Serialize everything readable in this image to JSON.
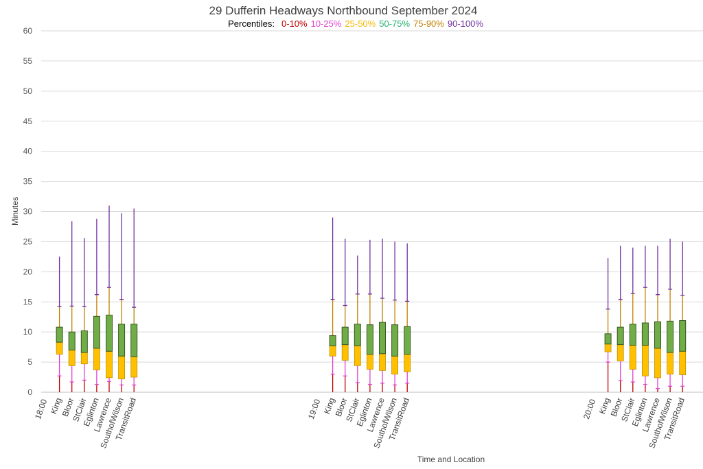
{
  "chart_data": {
    "type": "box",
    "title": "29 Dufferin Headways Northbound September 2024",
    "legend": {
      "label": "Percentiles:",
      "items": [
        {
          "name": "0-10%",
          "color": "#c00000"
        },
        {
          "name": "10-25%",
          "color": "#e040d0"
        },
        {
          "name": "25-50%",
          "color": "#f5b800"
        },
        {
          "name": "50-75%",
          "color": "#23b070"
        },
        {
          "name": "75-90%",
          "color": "#c08000"
        },
        {
          "name": "90-100%",
          "color": "#7030a0"
        }
      ]
    },
    "xlabel": "Time and Location",
    "ylabel": "Minutes",
    "ylim": [
      0,
      60
    ],
    "yticks": [
      0,
      5,
      10,
      15,
      20,
      25,
      30,
      35,
      40,
      45,
      50,
      55,
      60
    ],
    "grid": true,
    "groups": [
      {
        "time": "18:00",
        "locations": [
          {
            "name": "King",
            "min": 0,
            "p10": 2.7,
            "p25": 6.3,
            "p50": 8.3,
            "p75": 10.8,
            "p90": 14.2,
            "max": 22.5
          },
          {
            "name": "Bloor",
            "min": 0,
            "p10": 1.7,
            "p25": 4.4,
            "p50": 7.0,
            "p75": 10.0,
            "p90": 14.3,
            "max": 28.4
          },
          {
            "name": "StClair",
            "min": 0,
            "p10": 2.0,
            "p25": 4.7,
            "p50": 6.6,
            "p75": 10.2,
            "p90": 14.2,
            "max": 25.6
          },
          {
            "name": "Eglinton",
            "min": 0,
            "p10": 1.3,
            "p25": 3.7,
            "p50": 7.3,
            "p75": 12.6,
            "p90": 16.2,
            "max": 28.8
          },
          {
            "name": "Lawrence",
            "min": 0,
            "p10": 1.8,
            "p25": 2.4,
            "p50": 6.8,
            "p75": 12.8,
            "p90": 17.4,
            "max": 31.0
          },
          {
            "name": "SouthofWilson",
            "min": 0,
            "p10": 1.2,
            "p25": 2.2,
            "p50": 6.0,
            "p75": 11.3,
            "p90": 15.4,
            "max": 29.7
          },
          {
            "name": "TransitRoad",
            "min": 0,
            "p10": 1.2,
            "p25": 2.5,
            "p50": 5.9,
            "p75": 11.3,
            "p90": 14.1,
            "max": 30.5
          }
        ]
      },
      {
        "time": "19:00",
        "locations": [
          {
            "name": "King",
            "min": 0,
            "p10": 3.0,
            "p25": 6.0,
            "p50": 7.7,
            "p75": 9.4,
            "p90": 15.4,
            "max": 29.0
          },
          {
            "name": "Bloor",
            "min": 0,
            "p10": 2.7,
            "p25": 5.3,
            "p50": 7.9,
            "p75": 10.8,
            "p90": 14.4,
            "max": 25.5
          },
          {
            "name": "StClair",
            "min": 0,
            "p10": 1.6,
            "p25": 4.4,
            "p50": 7.7,
            "p75": 11.3,
            "p90": 16.3,
            "max": 22.7
          },
          {
            "name": "Eglinton",
            "min": 0,
            "p10": 1.3,
            "p25": 3.8,
            "p50": 6.3,
            "p75": 11.2,
            "p90": 16.3,
            "max": 25.3
          },
          {
            "name": "Lawrence",
            "min": 0,
            "p10": 1.5,
            "p25": 3.6,
            "p50": 6.4,
            "p75": 11.6,
            "p90": 15.6,
            "max": 25.5
          },
          {
            "name": "SouthofWilson",
            "min": 0,
            "p10": 1.2,
            "p25": 3.0,
            "p50": 6.0,
            "p75": 11.2,
            "p90": 15.3,
            "max": 25.0
          },
          {
            "name": "TransitRoad",
            "min": 0,
            "p10": 1.5,
            "p25": 3.4,
            "p50": 6.3,
            "p75": 10.9,
            "p90": 15.1,
            "max": 24.7
          }
        ]
      },
      {
        "time": "20:00",
        "locations": [
          {
            "name": "King",
            "min": 0,
            "p10": 5.0,
            "p25": 6.7,
            "p50": 8.0,
            "p75": 9.7,
            "p90": 13.8,
            "max": 22.3
          },
          {
            "name": "Bloor",
            "min": 0,
            "p10": 1.9,
            "p25": 5.2,
            "p50": 7.9,
            "p75": 10.8,
            "p90": 15.4,
            "max": 24.3
          },
          {
            "name": "StClair",
            "min": 0,
            "p10": 1.7,
            "p25": 3.8,
            "p50": 7.8,
            "p75": 11.3,
            "p90": 16.4,
            "max": 24.0
          },
          {
            "name": "Eglinton",
            "min": 0,
            "p10": 1.3,
            "p25": 2.7,
            "p50": 7.8,
            "p75": 11.5,
            "p90": 17.4,
            "max": 24.3
          },
          {
            "name": "Lawrence",
            "min": 0,
            "p10": 0.6,
            "p25": 2.4,
            "p50": 7.3,
            "p75": 11.7,
            "p90": 16.2,
            "max": 24.3
          },
          {
            "name": "SouthofWilson",
            "min": 0,
            "p10": 1.0,
            "p25": 3.0,
            "p50": 6.6,
            "p75": 11.8,
            "p90": 17.1,
            "max": 25.5
          },
          {
            "name": "TransitRoad",
            "min": 0,
            "p10": 1.0,
            "p25": 2.9,
            "p50": 6.8,
            "p75": 11.9,
            "p90": 16.1,
            "max": 25.0
          }
        ]
      }
    ],
    "box_colors": {
      "lower_box": "#ffc000",
      "upper_box": "#70ad47",
      "box_edge": "#375623"
    }
  }
}
